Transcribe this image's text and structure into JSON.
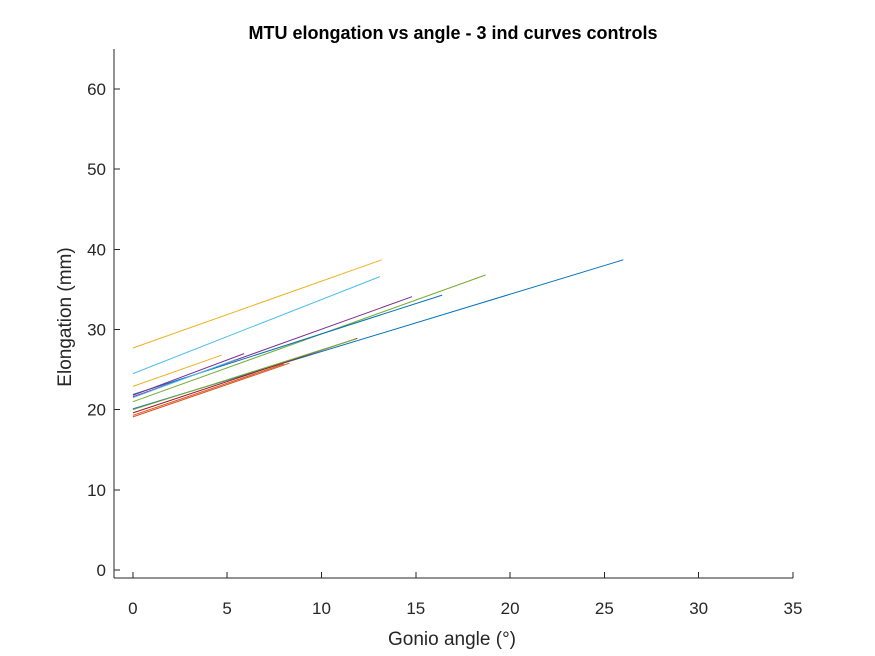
{
  "chart_data": {
    "type": "line",
    "title": "MTU elongation vs angle - 3 ind curves controls",
    "xlabel": "Gonio angle (°)",
    "ylabel": "Elongation (mm)",
    "xlim": [
      -1,
      35
    ],
    "ylim": [
      -1,
      65
    ],
    "xticks": [
      0,
      5,
      10,
      15,
      20,
      25,
      30,
      35
    ],
    "yticks": [
      0,
      10,
      20,
      30,
      40,
      50,
      60
    ],
    "grid": false,
    "legend": "none",
    "series": [
      {
        "color": "#0072BD",
        "x": [
          0,
          26
        ],
        "y": [
          20.1,
          38.7
        ]
      },
      {
        "color": "#D95319",
        "x": [
          0,
          8.3
        ],
        "y": [
          19.1,
          25.8
        ]
      },
      {
        "color": "#EDB120",
        "x": [
          0,
          13.2
        ],
        "y": [
          27.7,
          38.7
        ]
      },
      {
        "color": "#7E2F8E",
        "x": [
          0,
          14.8
        ],
        "y": [
          21.6,
          34.1
        ]
      },
      {
        "color": "#77AC30",
        "x": [
          0,
          18.7
        ],
        "y": [
          21.0,
          36.8
        ]
      },
      {
        "color": "#4DBEEE",
        "x": [
          0,
          13.1
        ],
        "y": [
          24.5,
          36.6
        ]
      },
      {
        "color": "#A2142F",
        "x": [
          0,
          11.9
        ],
        "y": [
          19.6,
          28.9
        ]
      },
      {
        "color": "#0072BD",
        "x": [
          0,
          16.4
        ],
        "y": [
          21.9,
          34.3
        ]
      },
      {
        "color": "#D95319",
        "x": [
          0,
          8.0
        ],
        "y": [
          19.3,
          25.7
        ]
      },
      {
        "color": "#EDB120",
        "x": [
          0,
          4.7
        ],
        "y": [
          22.9,
          26.8
        ]
      },
      {
        "color": "#7E2F8E",
        "x": [
          0,
          5.9
        ],
        "y": [
          21.8,
          27.0
        ]
      },
      {
        "color": "#77AC30",
        "x": [
          0,
          11.8
        ],
        "y": [
          20.0,
          28.8
        ]
      },
      {
        "color": "#4DBEEE",
        "x": [
          0,
          5.5
        ],
        "y": [
          21.5,
          26.3
        ]
      }
    ]
  }
}
